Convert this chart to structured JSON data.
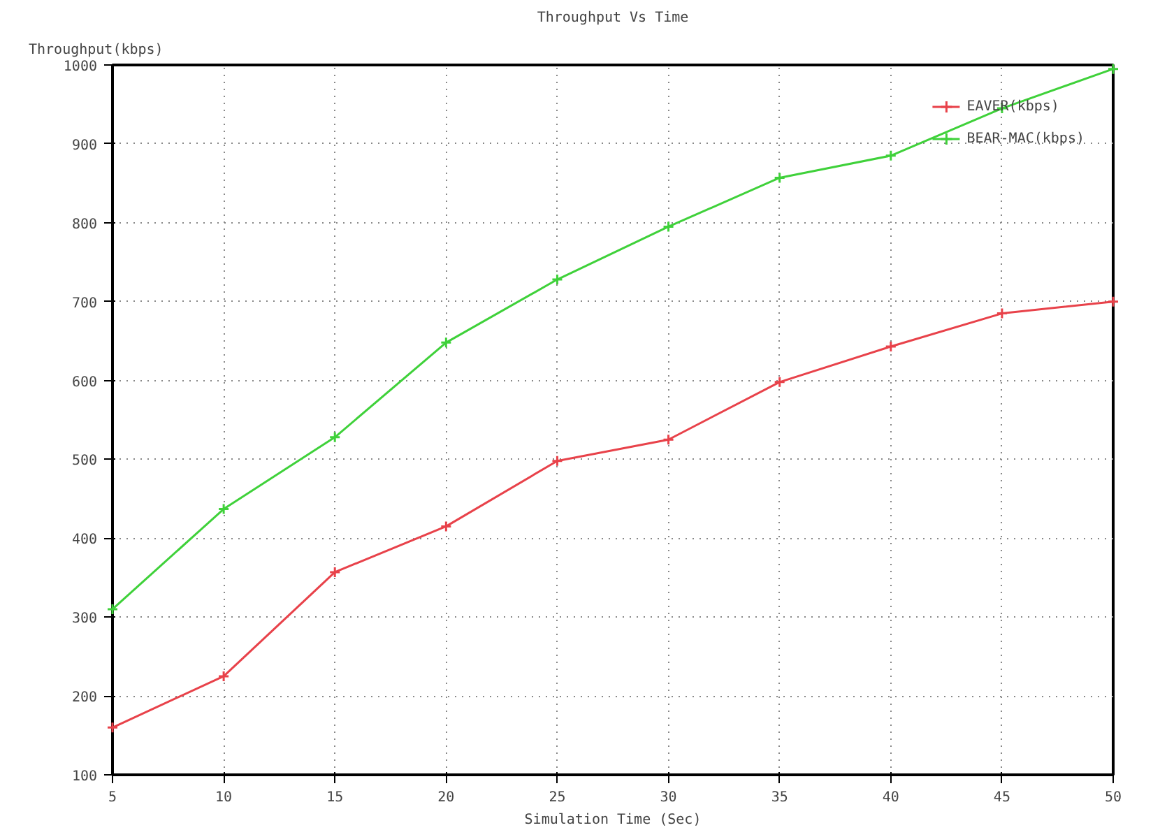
{
  "chart_data": {
    "type": "line",
    "title": "Throughput Vs Time",
    "xlabel": "Simulation Time (Sec)",
    "ylabel": "Throughput(kbps)",
    "x": [
      5,
      10,
      15,
      20,
      25,
      30,
      35,
      40,
      45,
      50
    ],
    "series": [
      {
        "name": "EAVER(kbps)",
        "color": "#e8424a",
        "values": [
          160,
          225,
          357,
          415,
          498,
          525,
          598,
          643,
          685,
          700
        ]
      },
      {
        "name": "BEAR-MAC(kbps)",
        "color": "#3fd13a",
        "values": [
          310,
          437,
          528,
          648,
          728,
          795,
          857,
          885,
          945,
          995
        ]
      }
    ],
    "xlim": [
      5,
      50
    ],
    "ylim": [
      100,
      1000
    ],
    "xticks": [
      5,
      10,
      15,
      20,
      25,
      30,
      35,
      40,
      45,
      50
    ],
    "yticks": [
      100,
      200,
      300,
      400,
      500,
      600,
      700,
      800,
      900,
      1000
    ],
    "grid": true,
    "legend": "top right",
    "marker": "cross",
    "line_style": "solid"
  }
}
